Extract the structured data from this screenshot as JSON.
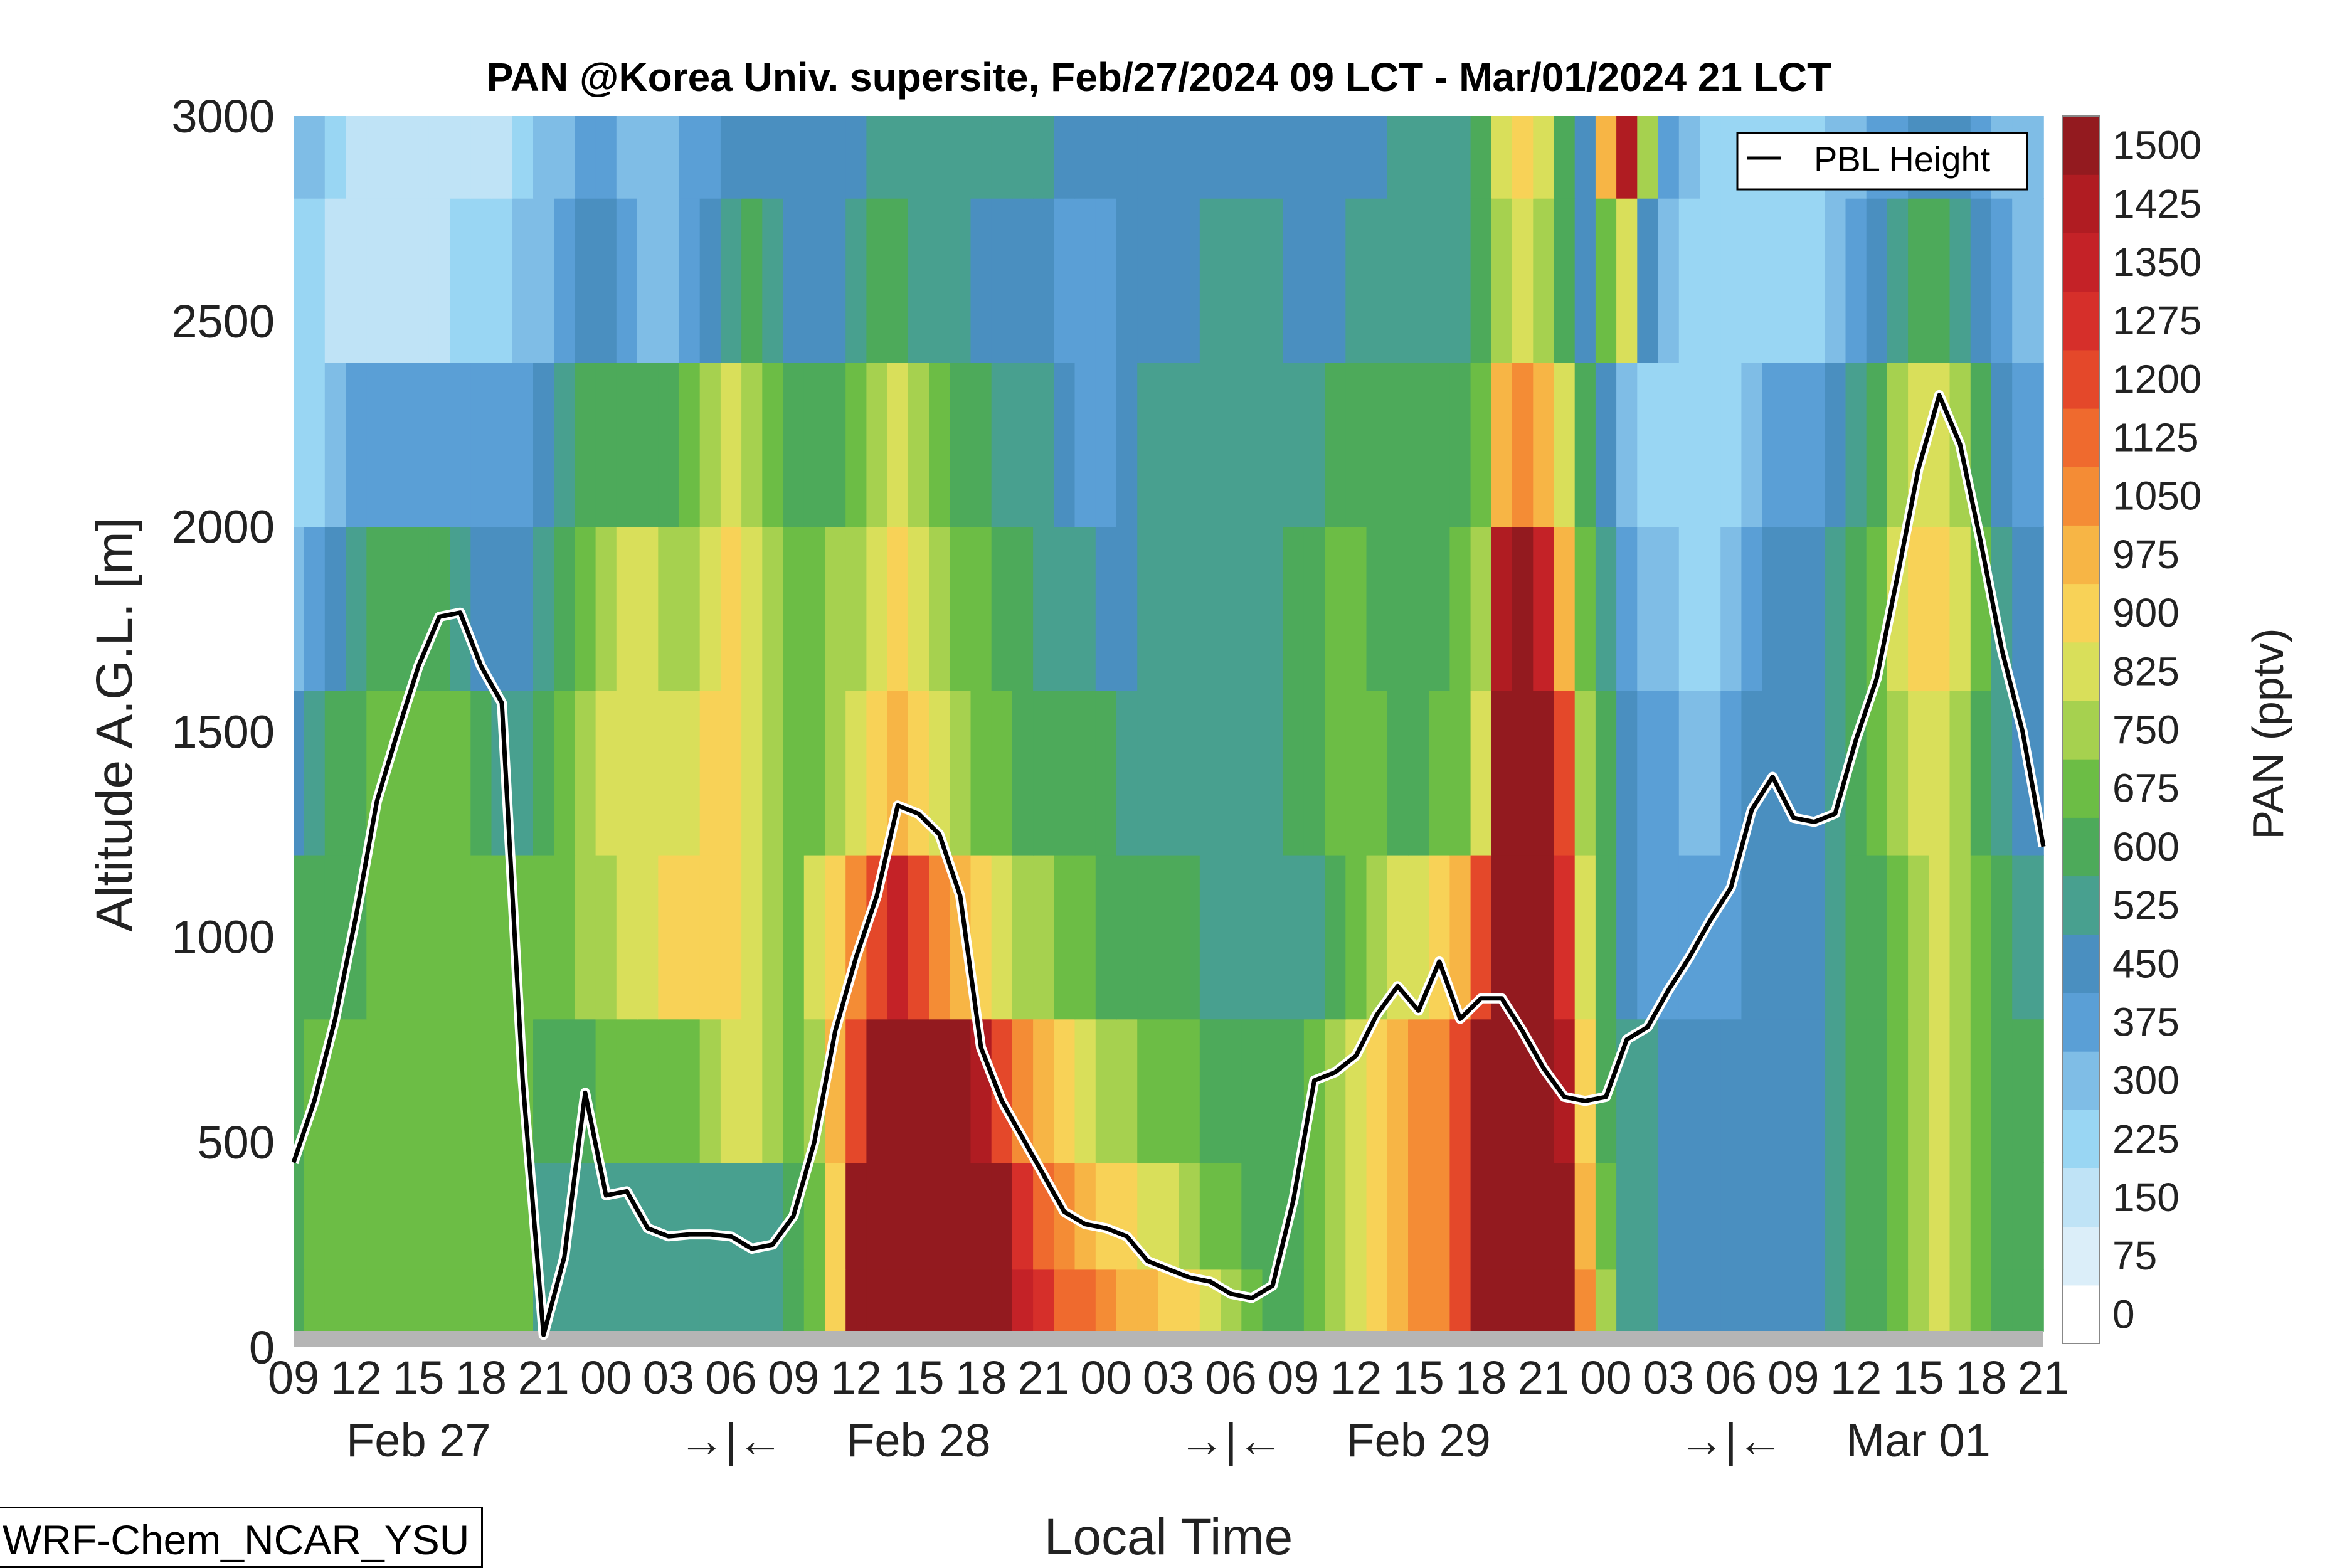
{
  "chart_data": {
    "type": "heatmap",
    "title": "PAN @Korea Univ. supersite, Feb/27/2024 09 LCT - Mar/01/2024 21 LCT",
    "xlabel": "Local Time",
    "ylabel": "Altitude A.G.L. [m]",
    "ylim": [
      0,
      3000
    ],
    "y_ticks": [
      0,
      500,
      1000,
      1500,
      2000,
      2500,
      3000
    ],
    "x_hours_range": [
      0,
      84
    ],
    "x_tick_labels": [
      "09",
      "12",
      "15",
      "18",
      "21",
      "00",
      "03",
      "06",
      "09",
      "12",
      "15",
      "18",
      "21",
      "00",
      "03",
      "06",
      "09",
      "12",
      "15",
      "18",
      "21",
      "00",
      "03",
      "06",
      "09",
      "12",
      "15",
      "18",
      "21"
    ],
    "date_labels": [
      {
        "label": "Feb 27",
        "at_tick": 2
      },
      {
        "label": "→|←",
        "at_tick": 7
      },
      {
        "label": "Feb 28",
        "at_tick": 10
      },
      {
        "label": "→|←",
        "at_tick": 15
      },
      {
        "label": "Feb 29",
        "at_tick": 18
      },
      {
        "label": "→|←",
        "at_tick": 23
      },
      {
        "label": "Mar 01",
        "at_tick": 26
      }
    ],
    "colorbar": {
      "label": "PAN (pptv)",
      "levels": [
        0,
        75,
        150,
        225,
        300,
        375,
        450,
        525,
        600,
        675,
        750,
        825,
        900,
        975,
        1050,
        1125,
        1200,
        1275,
        1350,
        1425,
        1500
      ],
      "colors": [
        "#ffffff",
        "#dbeef9",
        "#bfe3f6",
        "#99d6f3",
        "#7fbde6",
        "#5a9fd6",
        "#4a8fc0",
        "#48a08f",
        "#4daa5a",
        "#6cbd45",
        "#a6d14f",
        "#d9df5a",
        "#f8d257",
        "#f7b545",
        "#f48c35",
        "#ef6a2e",
        "#e4482a",
        "#d62f2a",
        "#c42227",
        "#b01c22",
        "#931a1f"
      ]
    },
    "series": [
      {
        "name": "PBL Height",
        "x_hours": [
          0,
          1,
          2,
          3,
          4,
          5,
          6,
          7,
          8,
          9,
          10,
          11,
          12,
          13,
          14,
          15,
          16,
          17,
          18,
          19,
          20,
          21,
          22,
          23,
          24,
          25,
          26,
          27,
          28,
          29,
          30,
          31,
          32,
          33,
          34,
          35,
          36,
          37,
          38,
          39,
          40,
          41,
          42,
          43,
          44,
          45,
          46,
          47,
          48,
          49,
          50,
          51,
          52,
          53,
          54,
          55,
          56,
          57,
          58,
          59,
          60,
          61,
          62,
          63,
          64,
          65,
          66,
          67,
          68,
          69,
          70,
          71,
          72,
          73,
          74,
          75,
          76,
          77,
          78,
          79,
          80,
          81,
          82,
          83,
          84
        ],
        "values": [
          450,
          600,
          800,
          1050,
          1330,
          1500,
          1660,
          1780,
          1790,
          1660,
          1570,
          650,
          30,
          220,
          620,
          370,
          380,
          290,
          270,
          275,
          275,
          270,
          240,
          250,
          320,
          500,
          770,
          950,
          1100,
          1320,
          1300,
          1250,
          1100,
          730,
          600,
          510,
          420,
          330,
          300,
          290,
          270,
          210,
          190,
          170,
          160,
          130,
          120,
          150,
          360,
          650,
          670,
          710,
          810,
          880,
          820,
          940,
          800,
          850,
          850,
          770,
          680,
          610,
          600,
          610,
          750,
          780,
          870,
          950,
          1040,
          1120,
          1310,
          1390,
          1290,
          1280,
          1300,
          1480,
          1630,
          1880,
          2140,
          2320,
          2200,
          1960,
          1700,
          1500,
          1220
        ]
      }
    ],
    "legend": {
      "entries": [
        "PBL Height"
      ],
      "position": "top-right"
    },
    "field_rows": [
      {
        "alt": 80,
        "values": [
          650,
          675,
          675,
          675,
          675,
          675,
          675,
          675,
          675,
          675,
          675,
          675,
          525,
          525,
          525,
          525,
          525,
          525,
          525,
          525,
          525,
          525,
          525,
          525,
          600,
          675,
          900,
          1500,
          1500,
          1500,
          1500,
          1500,
          1500,
          1500,
          1500,
          1350,
          1275,
          1125,
          1125,
          1050,
          975,
          975,
          900,
          900,
          825,
          750,
          675,
          600,
          600,
          675,
          750,
          825,
          900,
          975,
          1050,
          1050,
          1200,
          1500,
          1500,
          1500,
          1500,
          1500,
          1050,
          750,
          525,
          525,
          450,
          450,
          450,
          450,
          450,
          450,
          450,
          450,
          525,
          600,
          600,
          675,
          750,
          825,
          750,
          675,
          600,
          600,
          600
        ]
      },
      {
        "alt": 300,
        "values": [
          650,
          675,
          675,
          675,
          675,
          675,
          675,
          675,
          675,
          675,
          675,
          675,
          525,
          525,
          525,
          525,
          525,
          525,
          525,
          525,
          525,
          525,
          525,
          525,
          600,
          675,
          900,
          1500,
          1500,
          1500,
          1500,
          1500,
          1500,
          1500,
          1500,
          1275,
          1125,
          1050,
          975,
          900,
          900,
          825,
          825,
          750,
          675,
          675,
          600,
          600,
          600,
          675,
          750,
          825,
          900,
          975,
          1050,
          1050,
          1200,
          1500,
          1500,
          1500,
          1500,
          1500,
          975,
          675,
          525,
          525,
          450,
          450,
          450,
          450,
          450,
          450,
          450,
          450,
          525,
          600,
          600,
          675,
          750,
          825,
          750,
          675,
          600,
          600,
          600
        ]
      },
      {
        "alt": 600,
        "values": [
          650,
          675,
          675,
          675,
          675,
          675,
          675,
          675,
          675,
          675,
          675,
          675,
          600,
          600,
          600,
          675,
          675,
          675,
          675,
          675,
          750,
          825,
          825,
          750,
          675,
          750,
          975,
          1200,
          1500,
          1500,
          1500,
          1500,
          1500,
          1425,
          1200,
          1050,
          975,
          900,
          825,
          750,
          750,
          675,
          675,
          675,
          600,
          600,
          600,
          600,
          600,
          675,
          750,
          825,
          900,
          975,
          1050,
          1050,
          1200,
          1500,
          1500,
          1500,
          1500,
          1425,
          900,
          600,
          525,
          525,
          450,
          450,
          450,
          450,
          450,
          450,
          450,
          450,
          525,
          600,
          600,
          675,
          750,
          825,
          750,
          675,
          600,
          600,
          600
        ]
      },
      {
        "alt": 1000,
        "values": [
          600,
          600,
          600,
          600,
          675,
          675,
          675,
          675,
          675,
          675,
          675,
          675,
          675,
          675,
          750,
          750,
          825,
          825,
          900,
          900,
          900,
          900,
          825,
          750,
          675,
          825,
          900,
          1050,
          1200,
          1350,
          1200,
          1050,
          975,
          900,
          825,
          750,
          750,
          675,
          675,
          600,
          600,
          600,
          600,
          600,
          525,
          525,
          525,
          525,
          525,
          525,
          600,
          675,
          750,
          825,
          825,
          900,
          975,
          1200,
          1500,
          1500,
          1500,
          1275,
          825,
          600,
          450,
          375,
          375,
          375,
          375,
          375,
          450,
          450,
          450,
          450,
          525,
          600,
          600,
          675,
          750,
          825,
          750,
          675,
          600,
          525,
          525
        ]
      },
      {
        "alt": 1400,
        "values": [
          450,
          525,
          600,
          600,
          675,
          675,
          675,
          675,
          675,
          600,
          525,
          525,
          600,
          675,
          750,
          825,
          825,
          825,
          825,
          825,
          900,
          900,
          825,
          750,
          675,
          675,
          750,
          825,
          900,
          975,
          900,
          825,
          750,
          675,
          675,
          600,
          600,
          600,
          600,
          600,
          525,
          525,
          525,
          525,
          525,
          525,
          525,
          525,
          600,
          600,
          675,
          675,
          675,
          600,
          600,
          675,
          675,
          825,
          1500,
          1500,
          1500,
          1200,
          750,
          600,
          450,
          375,
          375,
          300,
          300,
          375,
          450,
          450,
          450,
          450,
          525,
          600,
          675,
          750,
          825,
          825,
          750,
          600,
          525,
          450,
          450
        ]
      },
      {
        "alt": 1800,
        "values": [
          300,
          375,
          450,
          525,
          600,
          600,
          600,
          600,
          525,
          450,
          450,
          450,
          525,
          600,
          675,
          750,
          825,
          825,
          750,
          750,
          825,
          900,
          825,
          750,
          675,
          675,
          750,
          750,
          825,
          900,
          825,
          750,
          675,
          675,
          600,
          600,
          525,
          525,
          525,
          450,
          450,
          525,
          525,
          525,
          525,
          525,
          525,
          525,
          600,
          600,
          675,
          675,
          600,
          600,
          600,
          600,
          675,
          750,
          1425,
          1500,
          1350,
          975,
          675,
          525,
          375,
          300,
          300,
          225,
          225,
          300,
          375,
          450,
          450,
          450,
          525,
          600,
          675,
          825,
          900,
          900,
          825,
          675,
          525,
          450,
          450
        ]
      },
      {
        "alt": 2200,
        "values": [
          225,
          225,
          300,
          375,
          375,
          375,
          375,
          375,
          375,
          375,
          375,
          375,
          450,
          525,
          600,
          600,
          600,
          600,
          600,
          675,
          750,
          825,
          750,
          675,
          600,
          600,
          600,
          675,
          750,
          825,
          750,
          675,
          600,
          600,
          525,
          525,
          525,
          450,
          375,
          375,
          450,
          525,
          525,
          525,
          525,
          525,
          525,
          525,
          525,
          525,
          600,
          600,
          600,
          600,
          600,
          600,
          600,
          675,
          975,
          1050,
          975,
          825,
          600,
          450,
          300,
          225,
          225,
          225,
          225,
          225,
          300,
          375,
          375,
          375,
          450,
          525,
          600,
          750,
          825,
          825,
          750,
          600,
          450,
          375,
          375
        ]
      },
      {
        "alt": 2600,
        "values": [
          225,
          225,
          150,
          150,
          150,
          150,
          150,
          150,
          225,
          225,
          225,
          300,
          300,
          375,
          450,
          450,
          375,
          300,
          300,
          375,
          450,
          525,
          600,
          525,
          450,
          450,
          450,
          525,
          600,
          600,
          525,
          525,
          525,
          450,
          450,
          450,
          450,
          375,
          375,
          375,
          450,
          450,
          450,
          450,
          525,
          525,
          525,
          525,
          450,
          450,
          450,
          525,
          525,
          525,
          525,
          525,
          525,
          600,
          750,
          825,
          750,
          600,
          450,
          675,
          825,
          450,
          300,
          225,
          225,
          225,
          225,
          225,
          225,
          225,
          300,
          375,
          450,
          525,
          600,
          600,
          525,
          450,
          375,
          300,
          300
        ]
      },
      {
        "alt": 3000,
        "values": [
          300,
          300,
          225,
          150,
          150,
          150,
          150,
          150,
          150,
          150,
          150,
          225,
          300,
          300,
          375,
          375,
          300,
          300,
          300,
          375,
          375,
          450,
          450,
          450,
          450,
          450,
          450,
          450,
          525,
          525,
          525,
          525,
          525,
          525,
          525,
          525,
          525,
          450,
          450,
          450,
          450,
          450,
          450,
          450,
          450,
          450,
          450,
          450,
          450,
          450,
          450,
          450,
          450,
          525,
          525,
          525,
          525,
          600,
          825,
          900,
          825,
          600,
          450,
          975,
          1425,
          750,
          375,
          300,
          225,
          225,
          225,
          225,
          225,
          225,
          300,
          300,
          375,
          375,
          450,
          450,
          450,
          375,
          300,
          300,
          300
        ]
      }
    ]
  },
  "footer": {
    "model_label": "WRF-Chem_NCAR_YSU"
  }
}
